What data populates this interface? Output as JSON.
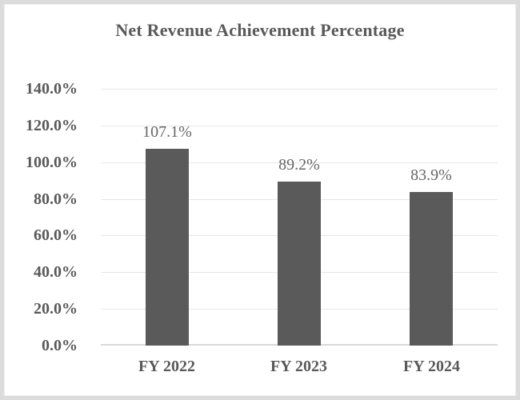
{
  "window": {
    "background": "#ffffff",
    "frame_border_color": "#dcdcdc"
  },
  "chart_data": {
    "type": "bar",
    "title": "Net Revenue Achievement Percentage",
    "categories": [
      "FY 2022",
      "FY 2023",
      "FY 2024"
    ],
    "values": [
      107.1,
      89.2,
      83.9
    ],
    "value_labels": [
      "107.1%",
      "89.2%",
      "83.9%"
    ],
    "y_tick_labels_top_to_bottom": [
      "140.0%",
      "120.0%",
      "100.0%",
      "80.0%",
      "60.0%",
      "40.0%",
      "20.0%",
      "0.0%"
    ],
    "ylim": [
      0,
      140
    ],
    "y_tick_step": 20,
    "grid": true,
    "legend": "none",
    "xlabel": "",
    "ylabel": "",
    "colors": {
      "bar": "#5a5a5a",
      "gridline": "#e7e7e7",
      "baseline": "#d9d9d9",
      "title_text": "#595959",
      "axis_text": "#595959",
      "value_label_text": "#666666"
    }
  }
}
